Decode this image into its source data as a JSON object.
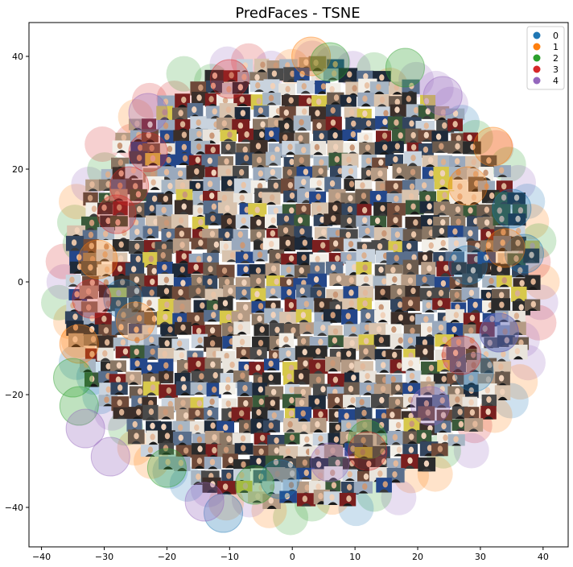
{
  "chart_data": {
    "type": "scatter",
    "title": "PredFaces - TSNE",
    "xlabel": "",
    "ylabel": "",
    "xlim": [
      -42,
      44
    ],
    "ylim": [
      -47,
      46
    ],
    "x_ticks": [
      -40,
      -30,
      -20,
      -10,
      0,
      10,
      20,
      30,
      40
    ],
    "y_ticks": [
      40,
      20,
      0,
      -20,
      -40
    ],
    "x_tick_labels": [
      "−40",
      "−30",
      "−20",
      "−10",
      "0",
      "10",
      "20",
      "30",
      "40"
    ],
    "y_tick_labels": [
      "40",
      "20",
      "0",
      "−20",
      "−40"
    ],
    "grid": false,
    "legend_position": "top-right",
    "point_style": "translucent circle with face-photo thumbnail",
    "series": [
      {
        "name": "0",
        "color": "#1f77b4",
        "points": [
          [
            35,
            13
          ],
          [
            37,
            5
          ],
          [
            33,
            -9
          ],
          [
            -11,
            -41
          ],
          [
            -2,
            -35
          ],
          [
            29,
            -16
          ],
          [
            28,
            3
          ],
          [
            -27,
            -3
          ]
        ]
      },
      {
        "name": "1",
        "color": "#ff7f0e",
        "points": [
          [
            3,
            40
          ],
          [
            -31,
            4
          ],
          [
            -34,
            -11
          ],
          [
            28,
            17
          ],
          [
            34,
            6
          ],
          [
            -25,
            -7
          ],
          [
            32,
            24
          ]
        ]
      },
      {
        "name": "2",
        "color": "#2ca02c",
        "points": [
          [
            6,
            39
          ],
          [
            -35,
            -17
          ],
          [
            -34,
            -22
          ],
          [
            -6,
            -36
          ],
          [
            18,
            38
          ],
          [
            -20,
            -33
          ],
          [
            12,
            -28
          ]
        ]
      },
      {
        "name": "3",
        "color": "#d62728",
        "points": [
          [
            -10,
            36
          ],
          [
            12,
            -30
          ],
          [
            -32,
            -3
          ],
          [
            -28,
            12
          ],
          [
            -26,
            17
          ],
          [
            27,
            -13
          ],
          [
            -23,
            23
          ]
        ]
      },
      {
        "name": "4",
        "color": "#9467bd",
        "points": [
          [
            -23,
            30
          ],
          [
            -29,
            -31
          ],
          [
            -14,
            -39
          ],
          [
            22,
            -22
          ],
          [
            33,
            -9
          ],
          [
            6,
            -32
          ],
          [
            -33,
            -26
          ],
          [
            24,
            33
          ]
        ]
      }
    ]
  }
}
